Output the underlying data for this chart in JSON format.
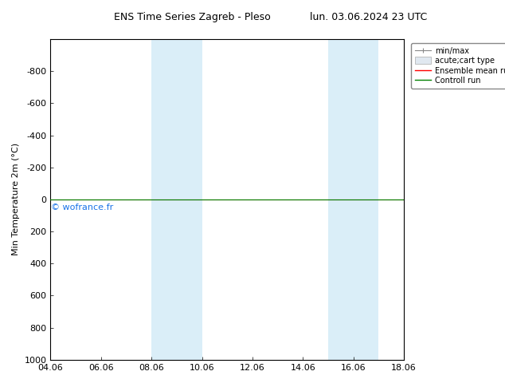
{
  "title_left": "ENS Time Series Zagreb - Pleso",
  "title_right": "lun. 03.06.2024 23 UTC",
  "ylabel": "Min Temperature 2m (°C)",
  "ylim_top": -1000,
  "ylim_bottom": 1000,
  "yticks": [
    -800,
    -600,
    -400,
    -200,
    0,
    200,
    400,
    600,
    800,
    1000
  ],
  "xlim_start": 0,
  "xlim_end": 14,
  "xtick_labels": [
    "04.06",
    "06.06",
    "08.06",
    "10.06",
    "12.06",
    "14.06",
    "16.06",
    "18.06"
  ],
  "xtick_positions": [
    0,
    2,
    4,
    6,
    8,
    10,
    12,
    14
  ],
  "shade_bands": [
    {
      "xmin": 4.0,
      "xmax": 6.0,
      "color": "#daeef8"
    },
    {
      "xmin": 11.0,
      "xmax": 13.0,
      "color": "#daeef8"
    }
  ],
  "green_line_y": 0,
  "red_line_y": 0,
  "watermark": "© wofrance.fr",
  "watermark_color": "#1a73e8",
  "legend_labels": [
    "min/max",
    "acute;cart type",
    "Ensemble mean run",
    "Controll run"
  ],
  "background_color": "#ffffff",
  "font_size": 8,
  "title_fontsize": 9
}
